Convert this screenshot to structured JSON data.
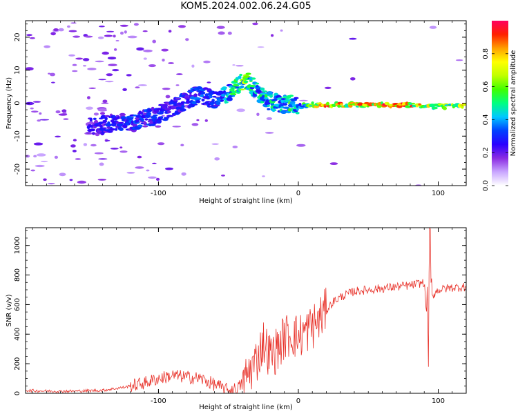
{
  "title": "KOM5.2024.002.06.24.G05",
  "chart_data": [
    {
      "type": "heatmap",
      "title": "KOM5.2024.002.06.24.G05",
      "xlabel": "Height of straight line (km)",
      "ylabel": "Frequency (Hz)",
      "xlim": [
        -195,
        120
      ],
      "ylim": [
        -25,
        25
      ],
      "x_ticks": [
        -100,
        0,
        100
      ],
      "y_ticks": [
        -20,
        -10,
        0,
        10,
        20
      ],
      "colorbar": {
        "label": "Normalized spectral amplitude",
        "range": [
          0,
          1
        ],
        "ticks": [
          0.0,
          0.2,
          0.4,
          0.6,
          0.8
        ],
        "colors": [
          "#ffffff",
          "#c9a6ff",
          "#8a2be2",
          "#2a00ff",
          "#0040ff",
          "#00c8ff",
          "#00ff80",
          "#40ff00",
          "#c0ff00",
          "#ffff00",
          "#ffa000",
          "#ff2000",
          "#ff0060"
        ]
      },
      "ridge": {
        "x": [
          -145,
          -130,
          -115,
          -100,
          -90,
          -80,
          -70,
          -60,
          -50,
          -42,
          -38,
          -35,
          -30,
          -25,
          -20,
          -10,
          -5,
          0,
          10,
          20,
          40,
          60,
          80,
          100,
          120
        ],
        "freq": [
          -7,
          -6,
          -5.5,
          -3.5,
          -1.5,
          1,
          3,
          0.5,
          3,
          6,
          7,
          6.5,
          4,
          1.5,
          0.5,
          -0.5,
          0,
          -1,
          -0.5,
          -0.5,
          -0.5,
          -0.5,
          -0.5,
          -1,
          -1
        ],
        "amplitude": [
          0.25,
          0.3,
          0.32,
          0.3,
          0.28,
          0.3,
          0.35,
          0.3,
          0.45,
          0.55,
          0.65,
          0.5,
          0.45,
          0.5,
          0.45,
          0.5,
          0.55,
          0.4,
          0.7,
          0.9,
          0.8,
          0.9,
          0.85,
          0.6,
          0.8
        ]
      }
    },
    {
      "type": "line",
      "xlabel": "Height of straight line (km)",
      "ylabel": "SNR (v/v)",
      "xlim": [
        -195,
        120
      ],
      "ylim": [
        0,
        1120
      ],
      "x_ticks": [
        -100,
        0,
        100
      ],
      "y_ticks": [
        0,
        200,
        400,
        600,
        800,
        1000
      ],
      "color": "#e8322a",
      "series": [
        {
          "x": [
            -195,
            -180,
            -160,
            -140,
            -125,
            -110,
            -100,
            -90,
            -80,
            -70,
            -60,
            -50,
            -45,
            -40,
            -35,
            -30,
            -25,
            -20,
            -15,
            -10,
            -5,
            0,
            5,
            10,
            15,
            20,
            25,
            30,
            35,
            40,
            50,
            60,
            70,
            80,
            90,
            93,
            94,
            95,
            100,
            110,
            120
          ],
          "y": [
            20,
            15,
            15,
            20,
            40,
            70,
            100,
            120,
            110,
            100,
            60,
            20,
            30,
            60,
            150,
            220,
            350,
            250,
            300,
            380,
            400,
            380,
            420,
            450,
            500,
            560,
            620,
            650,
            670,
            690,
            700,
            710,
            720,
            730,
            750,
            350,
            1110,
            650,
            700,
            715,
            720
          ]
        }
      ]
    }
  ]
}
